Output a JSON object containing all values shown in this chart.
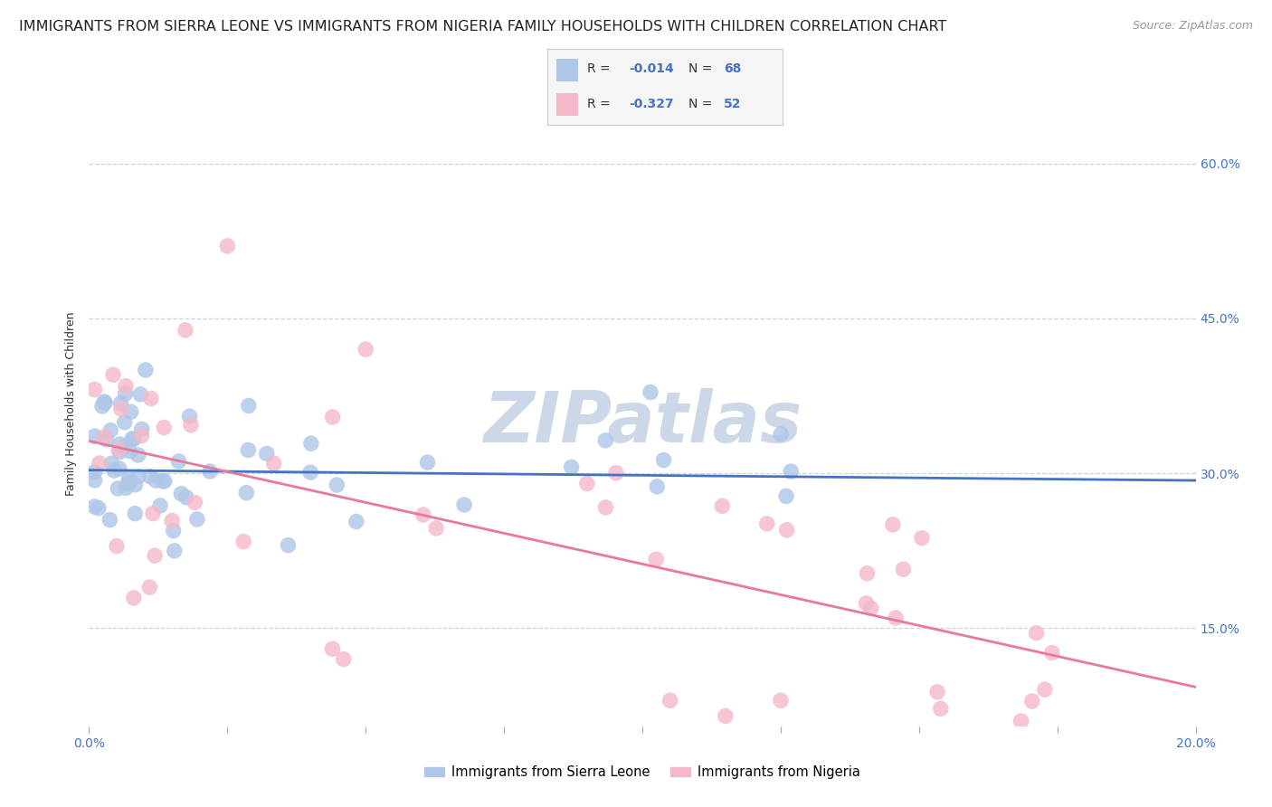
{
  "title": "IMMIGRANTS FROM SIERRA LEONE VS IMMIGRANTS FROM NIGERIA FAMILY HOUSEHOLDS WITH CHILDREN CORRELATION CHART",
  "source": "Source: ZipAtlas.com",
  "ylabel": "Family Households with Children",
  "xlim": [
    0.0,
    0.2
  ],
  "ylim": [
    0.055,
    0.68
  ],
  "xticks": [
    0.0,
    0.025,
    0.05,
    0.075,
    0.1,
    0.125,
    0.15,
    0.175,
    0.2
  ],
  "yticks": [
    0.15,
    0.3,
    0.45,
    0.6
  ],
  "ytick_labels": [
    "15.0%",
    "30.0%",
    "45.0%",
    "60.0%"
  ],
  "xtick_edge_labels": {
    "0.0": "0.0%",
    "0.20": "20.0%"
  },
  "legend_entries": [
    {
      "label": "Immigrants from Sierra Leone",
      "color": "#aec6e8",
      "R": "-0.014",
      "N": "68"
    },
    {
      "label": "Immigrants from Nigeria",
      "color": "#f4b8c8",
      "R": "-0.327",
      "N": "52"
    }
  ],
  "sierra_leone_color": "#aec6e8",
  "nigeria_color": "#f4b8c8",
  "sierra_leone_line_color": "#4472c4",
  "nigeria_line_color": "#e8799a",
  "watermark_color": "#ccd8e8",
  "background_color": "#ffffff",
  "grid_color": "#c8d4e4",
  "title_fontsize": 11.5,
  "source_fontsize": 9,
  "axis_label_fontsize": 9,
  "tick_fontsize": 10,
  "tick_color": "#4472c4",
  "legend_box_color": "#f5f5f5",
  "legend_border_color": "#cccccc",
  "sl_R": "-0.014",
  "sl_N": "68",
  "ng_R": "-0.327",
  "ng_N": "52"
}
